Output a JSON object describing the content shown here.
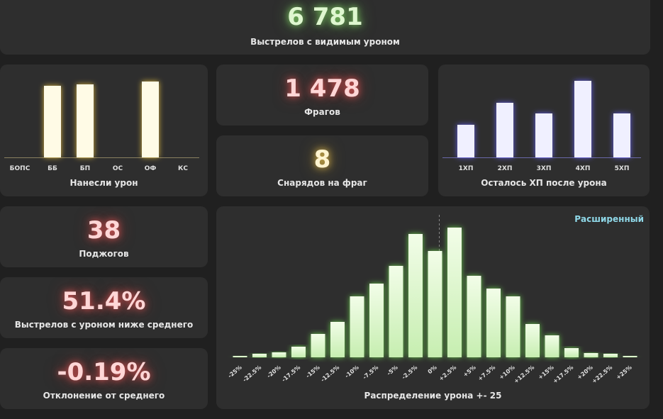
{
  "shots": {
    "value": "6 781",
    "label": "Выстрелов с видимым уроном"
  },
  "frags": {
    "value": "1 478",
    "label": "Фрагов"
  },
  "shells_per_frag": {
    "value": "8",
    "label": "Снарядов на фраг"
  },
  "fires": {
    "value": "38",
    "label": "Поджогов"
  },
  "below_avg": {
    "value": "51.4%",
    "label": "Выстрелов с уроном ниже среднего"
  },
  "deviation": {
    "value": "-0.19%",
    "label": "Отклонение от среднего"
  },
  "damage_types": {
    "label": "Нанесли урон"
  },
  "hp_left": {
    "label": "Осталось ХП после урона"
  },
  "distribution": {
    "label": "Распределение урона +- 25",
    "mode_label": "Расширенный"
  },
  "colors": {
    "yellow": "#fffbe6",
    "blue": "#f0f0ff",
    "green": "#d8f5c8"
  },
  "chart_data": [
    {
      "type": "bar",
      "id": "damage_types",
      "categories": [
        "БОПС",
        "ББ",
        "БП",
        "ОС",
        "ОФ",
        "КС"
      ],
      "values": [
        0,
        101,
        103,
        0,
        107,
        0
      ]
    },
    {
      "type": "bar",
      "id": "hp_left",
      "categories": [
        "1ХП",
        "2ХП",
        "3ХП",
        "4ХП",
        "5ХП"
      ],
      "values": [
        46,
        77,
        62,
        108,
        62
      ]
    },
    {
      "type": "bar",
      "id": "distribution",
      "categories": [
        "-25%",
        "-22.5%",
        "-20%",
        "-17.5%",
        "-15%",
        "-12.5%",
        "-10%",
        "-7.5%",
        "-5%",
        "-2.5%",
        "0%",
        "+2.5%",
        "+5%",
        "+7.5%",
        "+10%",
        "+12.5%",
        "+15%",
        "+17.5%",
        "+20%",
        "+22.5%",
        "+25%"
      ],
      "values": [
        2,
        5,
        7,
        15,
        33,
        50,
        86,
        104,
        129,
        174,
        150,
        183,
        115,
        97,
        86,
        47,
        31,
        13,
        6,
        5,
        2
      ],
      "mean_marker": "+0%"
    }
  ]
}
